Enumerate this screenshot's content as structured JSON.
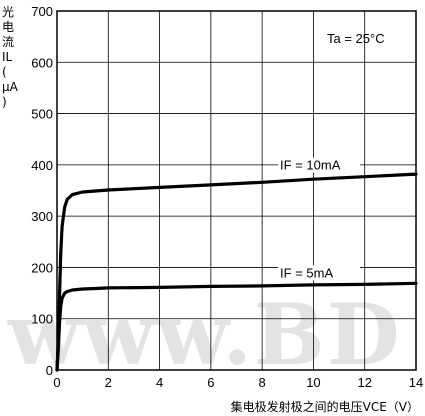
{
  "chart_data": {
    "type": "line",
    "title": "",
    "ylabel_chars": [
      "光",
      "电",
      "流",
      "IL",
      "(",
      "μA",
      ")"
    ],
    "xlabel": "集电极发射极之间的电压VCE（V）",
    "xlim": [
      0,
      14
    ],
    "ylim": [
      0,
      700
    ],
    "xticks": [
      0,
      2,
      4,
      6,
      8,
      10,
      12,
      14
    ],
    "yticks": [
      0,
      100,
      200,
      300,
      400,
      500,
      600,
      700
    ],
    "grid": true,
    "condition_label": "Ta = 25°C",
    "series": [
      {
        "name": "IF = 10mA",
        "x": [
          0,
          0.05,
          0.1,
          0.15,
          0.2,
          0.3,
          0.4,
          0.6,
          1.0,
          1.5,
          2,
          4,
          6,
          8,
          10,
          12,
          14
        ],
        "y": [
          0,
          60,
          150,
          230,
          280,
          318,
          333,
          342,
          347,
          349,
          351,
          356,
          361,
          366,
          372,
          377,
          382
        ]
      },
      {
        "name": "IF = 5mA",
        "x": [
          0,
          0.05,
          0.1,
          0.15,
          0.2,
          0.3,
          0.4,
          0.6,
          1.0,
          1.5,
          2,
          4,
          6,
          8,
          10,
          12,
          14
        ],
        "y": [
          0,
          40,
          95,
          125,
          140,
          150,
          153,
          156,
          158,
          159,
          160,
          161,
          163,
          164,
          166,
          167,
          169
        ]
      }
    ],
    "watermark": "www.BD"
  }
}
